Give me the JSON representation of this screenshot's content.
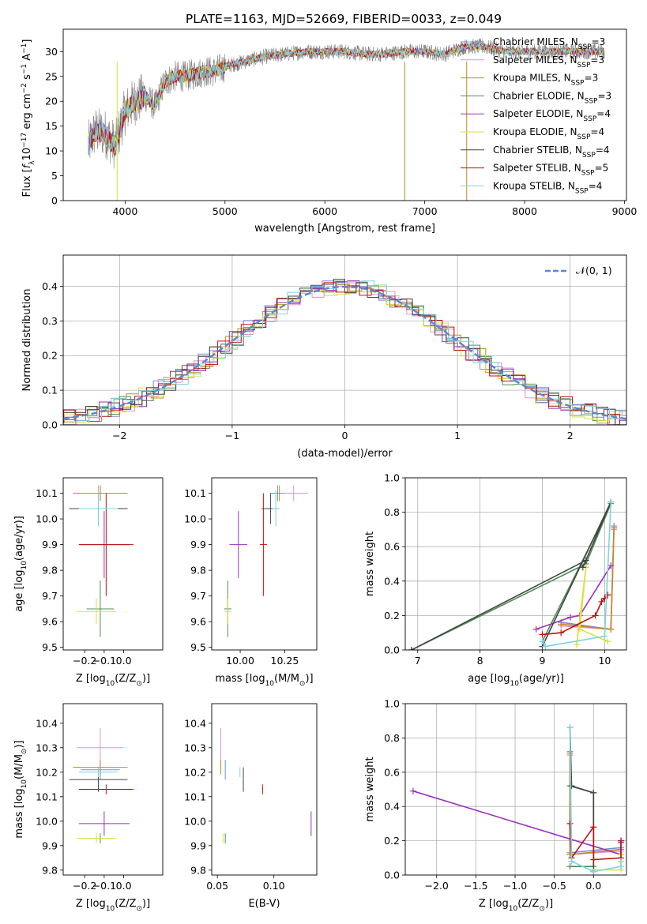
{
  "figure_title": "PLATE=1163, MJD=52669, FIBERID=0033, z=0.049",
  "colors": {
    "Chabrier MILES": "#6f8fd8",
    "Salpeter MILES": "#ea8fcf",
    "Kroupa MILES": "#c8891c",
    "Chabrier ELODIE": "#4f8f55",
    "Salpeter ELODIE": "#9b30c0",
    "Kroupa ELODIE": "#d8e23a",
    "Chabrier STELIB": "#444444",
    "Salpeter STELIB": "#c01010",
    "Kroupa STELIB": "#7fd4e0",
    "data": "#808080",
    "normal": "#5b86d0"
  },
  "chart_data": [
    {
      "id": "spectrum",
      "type": "line",
      "xlabel": "wavelength [Angstrom, rest frame]",
      "ylabel_parts": [
        "Flux [",
        "f",
        "λ",
        "10",
        "−17",
        " erg cm",
        "−2",
        " s",
        "−1",
        " A",
        "−1",
        "]"
      ],
      "xlim": [
        3380,
        9020
      ],
      "ylim": [
        0,
        34.5
      ],
      "xticks": [
        4000,
        5000,
        6000,
        7000,
        8000,
        9000
      ],
      "yticks": [
        0,
        5,
        10,
        15,
        20,
        25,
        30
      ],
      "grid": false,
      "legend_position": "right",
      "legend": [
        {
          "model": "Chabrier MILES",
          "nssp": "3"
        },
        {
          "model": "Salpeter MILES",
          "nssp": "3"
        },
        {
          "model": "Kroupa MILES",
          "nssp": "3"
        },
        {
          "model": "Chabrier ELODIE",
          "nssp": "3"
        },
        {
          "model": "Salpeter ELODIE",
          "nssp": "4"
        },
        {
          "model": "Kroupa ELODIE",
          "nssp": "4"
        },
        {
          "model": "Chabrier STELIB",
          "nssp": "4"
        },
        {
          "model": "Salpeter STELIB",
          "nssp": "5"
        },
        {
          "model": "Kroupa STELIB",
          "nssp": "4"
        }
      ],
      "continuum_wavelength": [
        3630,
        3700,
        3800,
        3900,
        4000,
        4100,
        4200,
        4300,
        4400,
        4500,
        4600,
        4700,
        4800,
        4900,
        5000,
        5200,
        5400,
        5600,
        5800,
        6000,
        6200,
        6400,
        6600,
        6800,
        7000,
        7200,
        7400,
        7600,
        7800,
        8000,
        8200,
        8400,
        8600,
        8800
      ],
      "continuum_flux": [
        11,
        14,
        13.5,
        11,
        18,
        20,
        21,
        19,
        24,
        25,
        25,
        25.5,
        26,
        26,
        27,
        28,
        29,
        29.5,
        30,
        30,
        30,
        29.5,
        29.5,
        30,
        30,
        29.5,
        31,
        31,
        30,
        30,
        30,
        30,
        30,
        30
      ]
    },
    {
      "id": "residuals",
      "type": "line",
      "xlabel": "(data-model)/error",
      "ylabel": "Normed distribution",
      "xlim": [
        -2.5,
        2.5
      ],
      "ylim": [
        0,
        0.49
      ],
      "xticks": [
        -2,
        -1,
        0,
        1,
        2
      ],
      "yticks": [
        0.0,
        0.1,
        0.2,
        0.3,
        0.4
      ],
      "grid": true,
      "legend_position": "top-right",
      "legend_label": "𝒩(0, 1)"
    },
    {
      "id": "age_vs_Z",
      "type": "scatter",
      "xlabel_main": "Z [log",
      "xlabel_sub": "10",
      "xlabel_tail": "(Z/Z",
      "xlabel_sub2": "⊙",
      "xlabel_end": ")]",
      "ylabel_main": "age  [log",
      "ylabel_sub": "10",
      "ylabel_tail": "(age/yr)]",
      "xlim": [
        -0.31,
        0.2
      ],
      "ylim": [
        9.49,
        10.16
      ],
      "xticks": [
        -0.2,
        -0.1,
        0.0
      ],
      "yticks": [
        9.5,
        9.6,
        9.7,
        9.8,
        9.9,
        10.0,
        10.1
      ],
      "points": [
        {
          "model": "Chabrier MILES",
          "x": -0.12,
          "xerr": 0.1,
          "y": 10.1,
          "yerr": 0.03
        },
        {
          "model": "Salpeter MILES",
          "x": -0.13,
          "xerr": 0.12,
          "y": 10.1,
          "yerr": 0.03
        },
        {
          "model": "Kroupa MILES",
          "x": -0.12,
          "xerr": 0.14,
          "y": 10.1,
          "yerr": 0.03
        },
        {
          "model": "Chabrier ELODIE",
          "x": -0.12,
          "xerr": 0.07,
          "y": 9.65,
          "yerr": 0.11
        },
        {
          "model": "Salpeter ELODIE",
          "x": -0.1,
          "xerr": 0.13,
          "y": 9.9,
          "yerr": 0.13
        },
        {
          "model": "Kroupa ELODIE",
          "x": -0.14,
          "xerr": 0.1,
          "y": 9.64,
          "yerr": 0.05
        },
        {
          "model": "Chabrier STELIB",
          "x": -0.13,
          "xerr": 0.15,
          "y": 10.04,
          "yerr": 0.06
        },
        {
          "model": "Salpeter STELIB",
          "x": -0.09,
          "xerr": 0.14,
          "y": 9.9,
          "yerr": 0.2
        },
        {
          "model": "Kroupa STELIB",
          "x": -0.13,
          "xerr": 0.1,
          "y": 10.04,
          "yerr": 0.07
        }
      ]
    },
    {
      "id": "age_vs_mass",
      "type": "scatter",
      "xlabel_main": "mass [log",
      "xlabel_sub": "10",
      "xlabel_tail": "(M/M",
      "xlabel_sub2": "⊙",
      "xlabel_end": ")]",
      "xlim": [
        9.84,
        10.43
      ],
      "ylim": [
        9.49,
        10.16
      ],
      "xticks": [
        10.0,
        10.25
      ],
      "xtick_labels": [
        "10.00",
        "10.25"
      ],
      "yticks": [
        9.5,
        9.6,
        9.7,
        9.8,
        9.9,
        10.0,
        10.1
      ],
      "points": [
        {
          "model": "Chabrier MILES",
          "x": 10.21,
          "xerr": 0.04,
          "y": 10.1,
          "yerr": 0.03
        },
        {
          "model": "Salpeter MILES",
          "x": 10.3,
          "xerr": 0.08,
          "y": 10.1,
          "yerr": 0.03
        },
        {
          "model": "Kroupa MILES",
          "x": 10.22,
          "xerr": 0.03,
          "y": 10.1,
          "yerr": 0.03
        },
        {
          "model": "Chabrier ELODIE",
          "x": 9.93,
          "xerr": 0.02,
          "y": 9.65,
          "yerr": 0.11
        },
        {
          "model": "Salpeter ELODIE",
          "x": 9.99,
          "xerr": 0.05,
          "y": 9.9,
          "yerr": 0.13
        },
        {
          "model": "Kroupa ELODIE",
          "x": 9.93,
          "xerr": 0.02,
          "y": 9.64,
          "yerr": 0.05
        },
        {
          "model": "Chabrier STELIB",
          "x": 10.17,
          "xerr": 0.05,
          "y": 10.04,
          "yerr": 0.06
        },
        {
          "model": "Salpeter STELIB",
          "x": 10.13,
          "xerr": 0.02,
          "y": 9.9,
          "yerr": 0.2
        },
        {
          "model": "Kroupa STELIB",
          "x": 10.2,
          "xerr": 0.02,
          "y": 10.04,
          "yerr": 0.07
        }
      ]
    },
    {
      "id": "massweight_vs_age",
      "type": "line",
      "xlabel_main": "age  [log",
      "xlabel_sub": "10",
      "xlabel_tail": "(age/yr)]",
      "ylabel": "mass weight",
      "xlim": [
        6.8,
        10.35
      ],
      "ylim": [
        0,
        1.0
      ],
      "xticks": [
        7,
        8,
        9,
        10
      ],
      "yticks": [
        0.0,
        0.2,
        0.4,
        0.6,
        0.8,
        1.0
      ],
      "grid": true,
      "series": [
        {
          "model": "Chabrier MILES",
          "x": [
            9.3,
            10.1,
            10.15
          ],
          "y": [
            0.16,
            0.12,
            0.72
          ]
        },
        {
          "model": "Salpeter MILES",
          "x": [
            9.3,
            10.1,
            10.15
          ],
          "y": [
            0.14,
            0.12,
            0.7
          ]
        },
        {
          "model": "Kroupa MILES",
          "x": [
            9.3,
            10.1,
            10.15
          ],
          "y": [
            0.15,
            0.12,
            0.71
          ]
        },
        {
          "model": "Chabrier ELODIE",
          "x": [
            6.9,
            9.7,
            10.1,
            9.0
          ],
          "y": [
            0.0,
            0.5,
            0.85,
            0.05
          ]
        },
        {
          "model": "Salpeter ELODIE",
          "x": [
            8.9,
            9.45,
            9.6,
            10.1
          ],
          "y": [
            0.12,
            0.19,
            0.2,
            0.49
          ]
        },
        {
          "model": "Kroupa ELODIE",
          "x": [
            9.55,
            9.7,
            9.6,
            10.05
          ],
          "y": [
            0.03,
            0.48,
            0.12,
            0.05
          ]
        },
        {
          "model": "Chabrier STELIB",
          "x": [
            6.9,
            9.7,
            9.65,
            10.1,
            9.0
          ],
          "y": [
            0.0,
            0.52,
            0.48,
            0.86,
            0.02
          ]
        },
        {
          "model": "Salpeter STELIB",
          "x": [
            9.0,
            9.3,
            9.85,
            9.95,
            10.0,
            10.05
          ],
          "y": [
            0.09,
            0.1,
            0.2,
            0.28,
            0.3,
            0.32
          ]
        },
        {
          "model": "Kroupa STELIB",
          "x": [
            9.0,
            9.05,
            10.0,
            10.1
          ],
          "y": [
            0.05,
            0.02,
            0.08,
            0.86
          ]
        }
      ]
    },
    {
      "id": "mass_vs_Z",
      "type": "scatter",
      "xlabel_main": "Z [log",
      "xlabel_sub": "10",
      "xlabel_tail": "(Z/Z",
      "xlabel_sub2": "⊙",
      "xlabel_end": ")]",
      "ylabel_main": "mass [log",
      "ylabel_sub": "10",
      "ylabel_tail": "(M/M",
      "ylabel_sub2": "⊙",
      "ylabel_end": ")]",
      "xlim": [
        -0.31,
        0.2
      ],
      "ylim": [
        9.78,
        10.48
      ],
      "xticks": [
        -0.2,
        -0.1,
        0.0
      ],
      "yticks": [
        9.8,
        9.9,
        10.0,
        10.1,
        10.2,
        10.3,
        10.4
      ],
      "points": [
        {
          "model": "Chabrier MILES",
          "x": -0.12,
          "xerr": 0.1,
          "y": 10.21,
          "yerr": 0.04
        },
        {
          "model": "Salpeter MILES",
          "x": -0.12,
          "xerr": 0.12,
          "y": 10.3,
          "yerr": 0.08
        },
        {
          "model": "Kroupa MILES",
          "x": -0.12,
          "xerr": 0.14,
          "y": 10.22,
          "yerr": 0.03
        },
        {
          "model": "Chabrier ELODIE",
          "x": -0.12,
          "xerr": 0.07,
          "y": 9.93,
          "yerr": 0.02
        },
        {
          "model": "Salpeter ELODIE",
          "x": -0.1,
          "xerr": 0.13,
          "y": 9.99,
          "yerr": 0.05
        },
        {
          "model": "Kroupa ELODIE",
          "x": -0.14,
          "xerr": 0.1,
          "y": 9.93,
          "yerr": 0.02
        },
        {
          "model": "Chabrier STELIB",
          "x": -0.13,
          "xerr": 0.15,
          "y": 10.17,
          "yerr": 0.05
        },
        {
          "model": "Salpeter STELIB",
          "x": -0.09,
          "xerr": 0.14,
          "y": 10.13,
          "yerr": 0.02
        },
        {
          "model": "Kroupa STELIB",
          "x": -0.13,
          "xerr": 0.1,
          "y": 10.2,
          "yerr": 0.02
        }
      ]
    },
    {
      "id": "mass_vs_ebv",
      "type": "scatter",
      "xlabel": "E(B-V)",
      "xlim": [
        0.045,
        0.138
      ],
      "ylim": [
        9.78,
        10.48
      ],
      "xticks": [
        0.05,
        0.1
      ],
      "xtick_labels": [
        "0.05",
        "0.10"
      ],
      "yticks": [
        9.8,
        9.9,
        10.0,
        10.1,
        10.2,
        10.3,
        10.4
      ],
      "points": [
        {
          "model": "Chabrier MILES",
          "x": 0.057,
          "xerr": 0.0,
          "y": 10.21,
          "yerr": 0.04
        },
        {
          "model": "Salpeter MILES",
          "x": 0.053,
          "xerr": 0.0,
          "y": 10.3,
          "yerr": 0.08
        },
        {
          "model": "Kroupa MILES",
          "x": 0.053,
          "xerr": 0.0,
          "y": 10.22,
          "yerr": 0.03
        },
        {
          "model": "Chabrier ELODIE",
          "x": 0.057,
          "xerr": 0.0,
          "y": 9.93,
          "yerr": 0.02
        },
        {
          "model": "Salpeter ELODIE",
          "x": 0.133,
          "xerr": 0.0,
          "y": 9.99,
          "yerr": 0.05
        },
        {
          "model": "Kroupa ELODIE",
          "x": 0.055,
          "xerr": 0.0,
          "y": 9.93,
          "yerr": 0.02
        },
        {
          "model": "Chabrier STELIB",
          "x": 0.073,
          "xerr": 0.0,
          "y": 10.17,
          "yerr": 0.05
        },
        {
          "model": "Salpeter STELIB",
          "x": 0.09,
          "xerr": 0.0,
          "y": 10.13,
          "yerr": 0.02
        },
        {
          "model": "Kroupa STELIB",
          "x": 0.07,
          "xerr": 0.0,
          "y": 10.2,
          "yerr": 0.02
        }
      ]
    },
    {
      "id": "massweight_vs_Z",
      "type": "line",
      "xlabel_main": "Z [log",
      "xlabel_sub": "10",
      "xlabel_tail": "(Z/Z",
      "xlabel_sub2": "⊙",
      "xlabel_end": ")]",
      "ylabel": "mass weight",
      "xlim": [
        -2.4,
        0.42
      ],
      "ylim": [
        0,
        1.0
      ],
      "xticks": [
        -2.0,
        -1.5,
        -1.0,
        -0.5,
        0.0
      ],
      "yticks": [
        0.0,
        0.2,
        0.4,
        0.6,
        0.8,
        1.0
      ],
      "grid": true,
      "series": [
        {
          "model": "Chabrier MILES",
          "x": [
            -0.3,
            -0.3,
            0.35
          ],
          "y": [
            0.72,
            0.13,
            0.16
          ]
        },
        {
          "model": "Salpeter MILES",
          "x": [
            -0.3,
            -0.3,
            0.35
          ],
          "y": [
            0.7,
            0.12,
            0.14
          ]
        },
        {
          "model": "Kroupa MILES",
          "x": [
            -0.3,
            -0.3,
            0.35
          ],
          "y": [
            0.71,
            0.12,
            0.15
          ]
        },
        {
          "model": "Chabrier ELODIE",
          "x": [
            -0.3,
            0.0,
            0.0,
            -0.3
          ],
          "y": [
            0.52,
            0.48,
            0.05,
            0.05
          ]
        },
        {
          "model": "Salpeter ELODIE",
          "x": [
            -2.3,
            0.35,
            0.35,
            0.35
          ],
          "y": [
            0.49,
            0.12,
            0.19,
            0.2
          ]
        },
        {
          "model": "Kroupa ELODIE",
          "x": [
            0.0,
            0.0,
            0.35,
            0.35
          ],
          "y": [
            0.48,
            0.03,
            0.03,
            0.12
          ]
        },
        {
          "model": "Chabrier STELIB",
          "x": [
            -0.3,
            -0.28,
            0.0,
            0.0
          ],
          "y": [
            0.86,
            0.52,
            0.48,
            0.02
          ]
        },
        {
          "model": "Salpeter STELIB",
          "x": [
            -0.3,
            -0.28,
            0.0,
            0.0,
            0.35,
            0.35
          ],
          "y": [
            0.3,
            0.1,
            0.28,
            0.09,
            0.1,
            0.2
          ]
        },
        {
          "model": "Kroupa STELIB",
          "x": [
            -0.3,
            -0.28,
            0.0,
            0.35,
            0.35
          ],
          "y": [
            0.86,
            0.08,
            0.02,
            0.05,
            0.08
          ]
        }
      ]
    }
  ]
}
